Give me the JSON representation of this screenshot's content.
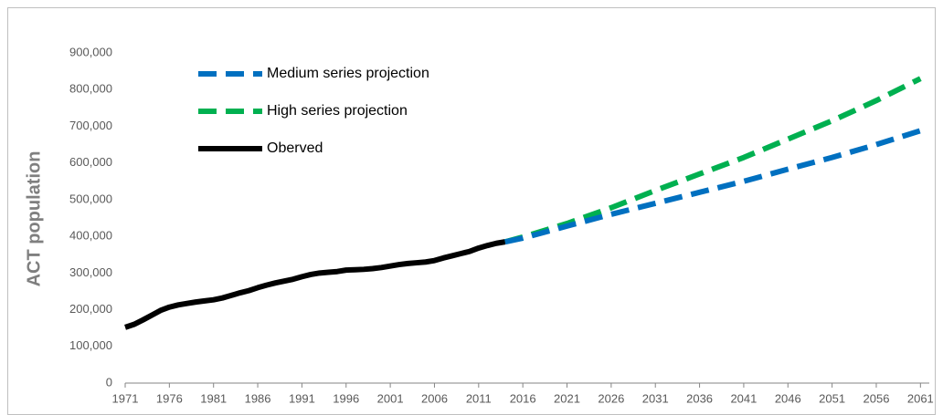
{
  "chart_data": {
    "type": "line",
    "y_label": "ACT population",
    "xlim": [
      1971,
      2062
    ],
    "ylim": [
      0,
      900000
    ],
    "xticks": [
      1971,
      1976,
      1981,
      1986,
      1991,
      1996,
      2001,
      2006,
      2011,
      2016,
      2021,
      2026,
      2031,
      2036,
      2041,
      2046,
      2051,
      2056,
      2061
    ],
    "yticks": [
      0,
      {
        "value": 100000,
        "label": "100,000"
      },
      {
        "value": 200000,
        "label": "200,000"
      },
      {
        "value": 300000,
        "label": "300,000"
      },
      {
        "value": 400000,
        "label": "400,000"
      },
      {
        "value": 500000,
        "label": "500,000"
      },
      {
        "value": 600000,
        "label": "600,000"
      },
      {
        "value": 700000,
        "label": "700,000"
      },
      {
        "value": 800000,
        "label": "800,000"
      },
      {
        "value": 900000,
        "label": "900,000"
      }
    ],
    "legend": "upper left",
    "series": [
      {
        "name": "Medium series projection",
        "color": "#0070c0",
        "dashed": true,
        "x": [
          2014,
          2016,
          2021,
          2026,
          2031,
          2036,
          2041,
          2046,
          2051,
          2056,
          2061
        ],
        "values": [
          385000,
          395000,
          428000,
          460000,
          490000,
          520000,
          550000,
          583000,
          615000,
          650000,
          688000
        ]
      },
      {
        "name": "High series projection",
        "color": "#00b050",
        "dashed": true,
        "x": [
          2014,
          2016,
          2021,
          2026,
          2031,
          2036,
          2041,
          2046,
          2051,
          2056,
          2061
        ],
        "values": [
          385000,
          398000,
          435000,
          478000,
          525000,
          570000,
          615000,
          665000,
          715000,
          770000,
          830000
        ]
      },
      {
        "name": "Oberved",
        "color": "#000000",
        "dashed": false,
        "x": [
          1971,
          1972,
          1973,
          1974,
          1975,
          1976,
          1977,
          1978,
          1979,
          1980,
          1981,
          1982,
          1983,
          1984,
          1985,
          1986,
          1987,
          1988,
          1989,
          1990,
          1991,
          1992,
          1993,
          1994,
          1995,
          1996,
          1997,
          1998,
          1999,
          2000,
          2001,
          2002,
          2003,
          2004,
          2005,
          2006,
          2007,
          2008,
          2009,
          2010,
          2011,
          2012,
          2013,
          2014
        ],
        "values": [
          152000,
          160000,
          172000,
          185000,
          198000,
          207000,
          213000,
          217000,
          221000,
          224000,
          227000,
          232000,
          239000,
          246000,
          252000,
          260000,
          267000,
          273000,
          278000,
          283000,
          290000,
          296000,
          300000,
          302000,
          304000,
          308000,
          309000,
          310000,
          312000,
          315000,
          319000,
          323000,
          326000,
          328000,
          330000,
          334000,
          341000,
          347000,
          353000,
          359000,
          368000,
          375000,
          381000,
          385000
        ]
      }
    ]
  }
}
